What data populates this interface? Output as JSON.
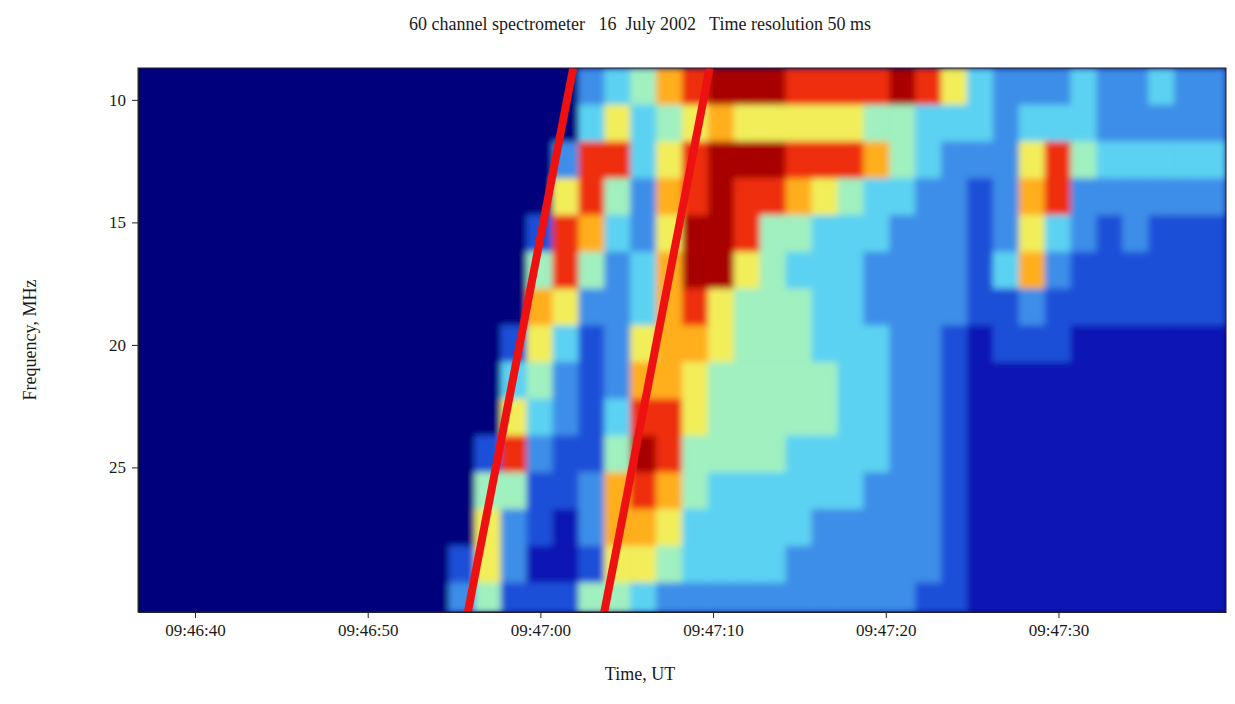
{
  "chart_data": {
    "type": "heatmap",
    "title": "60 channel spectrometer   16  July 2002   Time resolution 50 ms",
    "xlabel": "Time, UT",
    "ylabel": "Frequency, MHz",
    "xlim": [
      36.7,
      99.7
    ],
    "xticks": [
      {
        "value": 40,
        "label": "09:46:40"
      },
      {
        "value": 50,
        "label": "09:46:50"
      },
      {
        "value": 60,
        "label": "09:47:00"
      },
      {
        "value": 70,
        "label": "09:47:10"
      },
      {
        "value": 80,
        "label": "09:47:20"
      },
      {
        "value": 90,
        "label": "09:47:30"
      }
    ],
    "ylim": [
      8.7,
      30.9
    ],
    "yticks": [
      10,
      15,
      20,
      25
    ],
    "x_edges": [
      36.7,
      38.2,
      39.7,
      41.2,
      42.7,
      44.2,
      45.7,
      47.2,
      48.7,
      50.2,
      51.7,
      53.2,
      54.7,
      56.2,
      57.7,
      59.2,
      60.7,
      62.2,
      63.7,
      65.2,
      66.7,
      68.2,
      69.7,
      71.2,
      72.7,
      74.2,
      75.7,
      77.2,
      78.7,
      80.2,
      81.7,
      83.2,
      84.7,
      86.2,
      87.7,
      89.2,
      90.7,
      92.2,
      93.7,
      95.2,
      96.7,
      98.2,
      99.7
    ],
    "y_edges": [
      8.7,
      10.2,
      11.7,
      13.2,
      14.7,
      16.2,
      17.7,
      19.2,
      20.7,
      22.2,
      23.7,
      25.2,
      26.7,
      28.2,
      29.7,
      30.9
    ],
    "color_range": [
      0,
      9
    ],
    "cells": [
      [
        0,
        0,
        0,
        0,
        0,
        0,
        0,
        0,
        0,
        0,
        0,
        0,
        0,
        0,
        0,
        0,
        0,
        3,
        4,
        5,
        7,
        8,
        9,
        9,
        9,
        8,
        8,
        8,
        8,
        9,
        8,
        6,
        4,
        3,
        3,
        3,
        4,
        3,
        3,
        4,
        3,
        3
      ],
      [
        0,
        0,
        0,
        0,
        0,
        0,
        0,
        0,
        0,
        0,
        0,
        0,
        0,
        0,
        0,
        0,
        0,
        4,
        6,
        4,
        5,
        6,
        7,
        6,
        6,
        6,
        6,
        6,
        5,
        5,
        4,
        4,
        4,
        3,
        4,
        4,
        4,
        3,
        3,
        3,
        3,
        3
      ],
      [
        0,
        0,
        0,
        0,
        0,
        0,
        0,
        0,
        0,
        0,
        0,
        0,
        0,
        0,
        0,
        0,
        3,
        8,
        8,
        4,
        6,
        8,
        9,
        9,
        9,
        8,
        8,
        8,
        7,
        5,
        4,
        3,
        3,
        3,
        6,
        8,
        5,
        4,
        4,
        4,
        4,
        4
      ],
      [
        0,
        0,
        0,
        0,
        0,
        0,
        0,
        0,
        0,
        0,
        0,
        0,
        0,
        0,
        0,
        0,
        6,
        8,
        5,
        3,
        7,
        8,
        9,
        8,
        8,
        7,
        6,
        5,
        4,
        4,
        3,
        3,
        2,
        3,
        7,
        8,
        3,
        3,
        3,
        3,
        3,
        3
      ],
      [
        0,
        0,
        0,
        0,
        0,
        0,
        0,
        0,
        0,
        0,
        0,
        0,
        0,
        0,
        0,
        2,
        8,
        7,
        4,
        3,
        6,
        9,
        9,
        8,
        5,
        5,
        4,
        4,
        4,
        3,
        3,
        3,
        2,
        3,
        6,
        4,
        3,
        2,
        3,
        2,
        2,
        2
      ],
      [
        0,
        0,
        0,
        0,
        0,
        0,
        0,
        0,
        0,
        0,
        0,
        0,
        0,
        0,
        0,
        5,
        8,
        5,
        3,
        4,
        7,
        9,
        9,
        6,
        5,
        4,
        4,
        4,
        3,
        3,
        3,
        3,
        2,
        4,
        7,
        3,
        2,
        2,
        2,
        2,
        2,
        2
      ],
      [
        0,
        0,
        0,
        0,
        0,
        0,
        0,
        0,
        0,
        0,
        0,
        0,
        0,
        0,
        0,
        7,
        6,
        3,
        3,
        4,
        7,
        8,
        6,
        5,
        5,
        5,
        4,
        4,
        3,
        3,
        3,
        3,
        2,
        2,
        3,
        2,
        2,
        2,
        2,
        2,
        2,
        2
      ],
      [
        0,
        0,
        0,
        0,
        0,
        0,
        0,
        0,
        0,
        0,
        0,
        0,
        0,
        0,
        2,
        6,
        4,
        2,
        3,
        6,
        7,
        7,
        6,
        5,
        5,
        5,
        4,
        4,
        4,
        3,
        3,
        2,
        1,
        2,
        2,
        2,
        1,
        1,
        1,
        1,
        1,
        1
      ],
      [
        0,
        0,
        0,
        0,
        0,
        0,
        0,
        0,
        0,
        0,
        0,
        0,
        0,
        0,
        4,
        5,
        3,
        2,
        3,
        7,
        7,
        6,
        5,
        5,
        5,
        5,
        5,
        4,
        4,
        3,
        3,
        2,
        1,
        1,
        1,
        1,
        1,
        1,
        1,
        1,
        1,
        1
      ],
      [
        0,
        0,
        0,
        0,
        0,
        0,
        0,
        0,
        0,
        0,
        0,
        0,
        0,
        0,
        6,
        4,
        3,
        2,
        4,
        8,
        8,
        6,
        5,
        5,
        5,
        5,
        5,
        4,
        4,
        3,
        3,
        2,
        1,
        1,
        1,
        1,
        1,
        1,
        1,
        1,
        1,
        1
      ],
      [
        0,
        0,
        0,
        0,
        0,
        0,
        0,
        0,
        0,
        0,
        0,
        0,
        0,
        2,
        8,
        3,
        2,
        2,
        5,
        9,
        8,
        5,
        5,
        5,
        5,
        4,
        4,
        4,
        4,
        3,
        3,
        2,
        1,
        1,
        1,
        1,
        1,
        1,
        1,
        1,
        1,
        1
      ],
      [
        0,
        0,
        0,
        0,
        0,
        0,
        0,
        0,
        0,
        0,
        0,
        0,
        0,
        5,
        5,
        2,
        2,
        3,
        7,
        8,
        7,
        5,
        4,
        4,
        4,
        4,
        4,
        4,
        3,
        3,
        3,
        2,
        1,
        1,
        1,
        1,
        1,
        1,
        1,
        1,
        1,
        1
      ],
      [
        0,
        0,
        0,
        0,
        0,
        0,
        0,
        0,
        0,
        0,
        0,
        0,
        0,
        6,
        3,
        2,
        1,
        3,
        7,
        7,
        6,
        4,
        4,
        4,
        4,
        4,
        3,
        3,
        3,
        3,
        3,
        2,
        1,
        1,
        1,
        1,
        1,
        1,
        1,
        1,
        1,
        1
      ],
      [
        0,
        0,
        0,
        0,
        0,
        0,
        0,
        0,
        0,
        0,
        0,
        0,
        2,
        6,
        3,
        1,
        1,
        2,
        6,
        6,
        5,
        4,
        4,
        4,
        4,
        3,
        3,
        3,
        3,
        3,
        3,
        2,
        1,
        1,
        1,
        1,
        1,
        1,
        1,
        1,
        1,
        1
      ],
      [
        0,
        0,
        0,
        0,
        0,
        0,
        0,
        0,
        0,
        0,
        0,
        0,
        3,
        5,
        2,
        2,
        2,
        5,
        5,
        4,
        3,
        3,
        3,
        3,
        3,
        3,
        3,
        3,
        3,
        3,
        2,
        2,
        1,
        1,
        1,
        1,
        1,
        1,
        1,
        1,
        1,
        1
      ]
    ],
    "lines": [
      {
        "x": [
          55.8,
          61.9
        ],
        "y": [
          30.9,
          8.7
        ],
        "color": "#ee1111"
      },
      {
        "x": [
          63.7,
          69.8
        ],
        "y": [
          30.9,
          8.7
        ],
        "color": "#ee1111"
      }
    ]
  }
}
